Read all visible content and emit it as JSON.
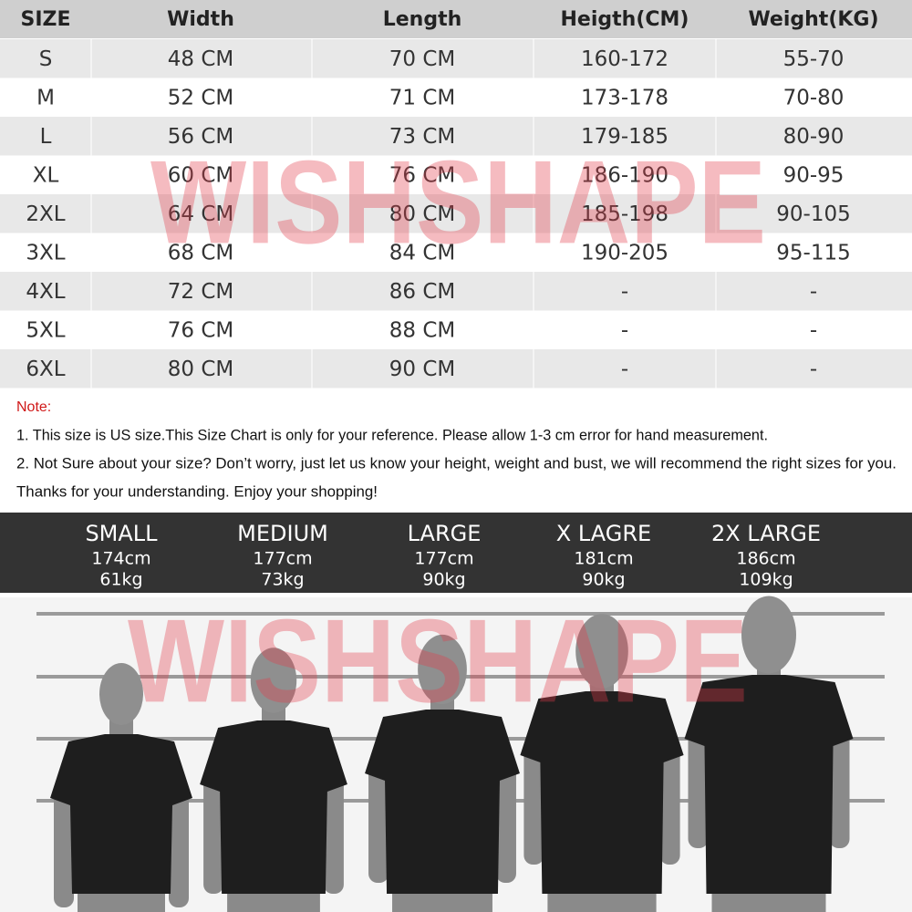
{
  "table": {
    "header": [
      "SIZE",
      "Width",
      "Length",
      "Heigth(CM)",
      "Weight(KG)"
    ],
    "rows": [
      [
        "S",
        "48 CM",
        "70 CM",
        "160-172",
        "55-70"
      ],
      [
        "M",
        "52 CM",
        "71 CM",
        "173-178",
        "70-80"
      ],
      [
        "L",
        "56 CM",
        "73 CM",
        "179-185",
        "80-90"
      ],
      [
        "XL",
        "60 CM",
        "76 CM",
        "186-190",
        "90-95"
      ],
      [
        "2XL",
        "64 CM",
        "80 CM",
        "185-198",
        "90-105"
      ],
      [
        "3XL",
        "68 CM",
        "84 CM",
        "190-205",
        "95-115"
      ],
      [
        "4XL",
        "72 CM",
        "86 CM",
        "-",
        "-"
      ],
      [
        "5XL",
        "76 CM",
        "88 CM",
        "-",
        "-"
      ],
      [
        "6XL",
        "80 CM",
        "90 CM",
        "-",
        "-"
      ]
    ]
  },
  "note": {
    "title": "Note:",
    "lines": [
      "1. This size is US size.This Size Chart is only for your reference. Please allow 1-3 cm error for hand measurement.",
      "2. Not Sure about your size? Don’t worry, just let us know your height, weight and bust, we will recommend the right sizes for you.",
      "Thanks for your understanding. Enjoy your shopping!"
    ]
  },
  "models": [
    {
      "size": "SMALL",
      "height": "174cm",
      "weight": "61kg"
    },
    {
      "size": "MEDIUM",
      "height": "177cm",
      "weight": "73kg"
    },
    {
      "size": "LARGE",
      "height": "177cm",
      "weight": "90kg"
    },
    {
      "size": "X LAGRE",
      "height": "181cm",
      "weight": "90kg"
    },
    {
      "size": "2X LARGE",
      "height": "186cm",
      "weight": "109kg"
    }
  ],
  "watermark": "WISHSHAPE"
}
